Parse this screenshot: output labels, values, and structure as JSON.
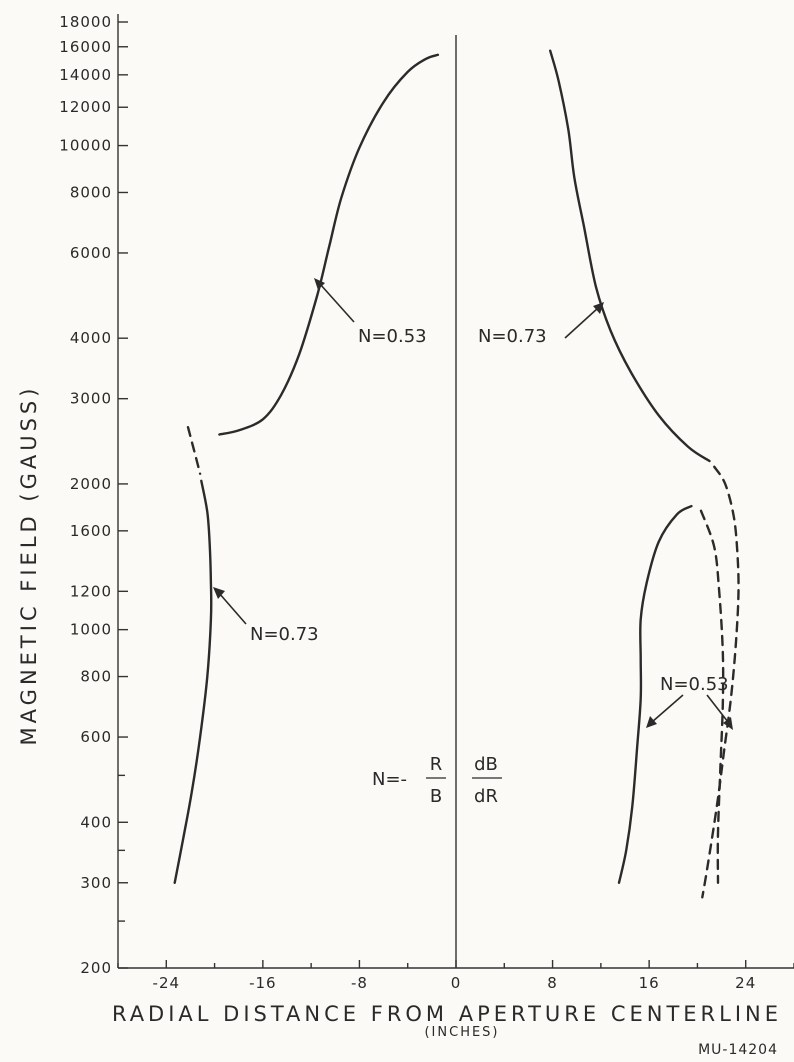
{
  "chart_data": {
    "type": "line",
    "xlabel": "RADIAL DISTANCE FROM APERTURE CENTERLINE",
    "xlabel_unit": "(INCHES)",
    "ylabel": "MAGNETIC FIELD (GAUSS)",
    "y_scale": "log",
    "xlim": [
      -28,
      28
    ],
    "ylim": [
      200,
      18000
    ],
    "x_ticks": [
      -24,
      -16,
      -8,
      0,
      8,
      16,
      24
    ],
    "x_tick_labels": [
      "-24",
      "-16",
      "-8",
      "0",
      "8",
      "16",
      "24"
    ],
    "y_ticks": [
      200,
      300,
      400,
      600,
      800,
      1000,
      1200,
      1600,
      2000,
      3000,
      4000,
      6000,
      8000,
      10000,
      12000,
      14000,
      16000,
      18000
    ],
    "y_tick_labels": [
      "200",
      "300",
      "400",
      "600",
      "800",
      "1000",
      "1200",
      "1600",
      "2000",
      "3000",
      "4000",
      "6000",
      "8000",
      "10000",
      "12000",
      "14000",
      "16000",
      "18000"
    ],
    "grid": false,
    "series": [
      {
        "style": "solid",
        "points": [
          [
            -19.6,
            2530
          ],
          [
            -18,
            2580
          ],
          [
            -16,
            2720
          ],
          [
            -14.5,
            3050
          ],
          [
            -13,
            3700
          ],
          [
            -11.5,
            4900
          ],
          [
            -10.5,
            6200
          ],
          [
            -9.5,
            7800
          ],
          [
            -8,
            9900
          ],
          [
            -6,
            12300
          ],
          [
            -4,
            14200
          ],
          [
            -2.5,
            15100
          ],
          [
            -1.5,
            15400
          ]
        ]
      },
      {
        "style": "dashed",
        "points": [
          [
            -22.2,
            2620
          ],
          [
            -21.8,
            2400
          ],
          [
            -21.2,
            2100
          ]
        ]
      },
      {
        "style": "solid",
        "points": [
          [
            -21.1,
            2030
          ],
          [
            -20.6,
            1750
          ],
          [
            -20.4,
            1500
          ],
          [
            -20.3,
            1250
          ],
          [
            -20.3,
            1050
          ],
          [
            -20.6,
            800
          ],
          [
            -21.2,
            600
          ],
          [
            -21.9,
            460
          ],
          [
            -22.6,
            370
          ],
          [
            -23.3,
            300
          ]
        ]
      },
      {
        "style": "solid",
        "points": [
          [
            7.8,
            15700
          ],
          [
            8.5,
            13600
          ],
          [
            9.3,
            10800
          ],
          [
            9.8,
            8600
          ],
          [
            10.6,
            6800
          ],
          [
            11.6,
            5100
          ],
          [
            12.8,
            4150
          ],
          [
            14.5,
            3400
          ],
          [
            16.8,
            2770
          ],
          [
            19.2,
            2390
          ],
          [
            21,
            2230
          ]
        ]
      },
      {
        "style": "dashed",
        "points": [
          [
            21.4,
            2170
          ],
          [
            22.3,
            2000
          ],
          [
            23,
            1720
          ],
          [
            23.3,
            1450
          ],
          [
            23.4,
            1200
          ],
          [
            23.2,
            950
          ],
          [
            22.8,
            730
          ],
          [
            22.2,
            560
          ],
          [
            21.6,
            430
          ],
          [
            20.8,
            320
          ],
          [
            20.4,
            280
          ]
        ]
      },
      {
        "style": "solid",
        "points": [
          [
            19.5,
            1800
          ],
          [
            18.3,
            1730
          ],
          [
            16.8,
            1520
          ],
          [
            15.8,
            1250
          ],
          [
            15.3,
            1050
          ],
          [
            15.3,
            870
          ],
          [
            15.3,
            720
          ],
          [
            15,
            570
          ],
          [
            14.6,
            430
          ],
          [
            14.1,
            350
          ],
          [
            13.5,
            300
          ]
        ]
      },
      {
        "style": "dashed",
        "points": [
          [
            20.3,
            1760
          ],
          [
            21.4,
            1480
          ],
          [
            21.8,
            1200
          ],
          [
            22.1,
            900
          ],
          [
            22.1,
            700
          ],
          [
            21.9,
            520
          ],
          [
            21.7,
            380
          ],
          [
            21.7,
            300
          ]
        ]
      }
    ],
    "annotations": [
      {
        "text": "N=0.53"
      },
      {
        "text": "N=0.73"
      },
      {
        "text": "N=0.73"
      },
      {
        "text": "N=0.53"
      }
    ],
    "formula": {
      "lhs": "N=-",
      "num1": "R",
      "den1": "B",
      "num2": "dB",
      "den2": "dR"
    },
    "figure_id": "MU-14204"
  }
}
